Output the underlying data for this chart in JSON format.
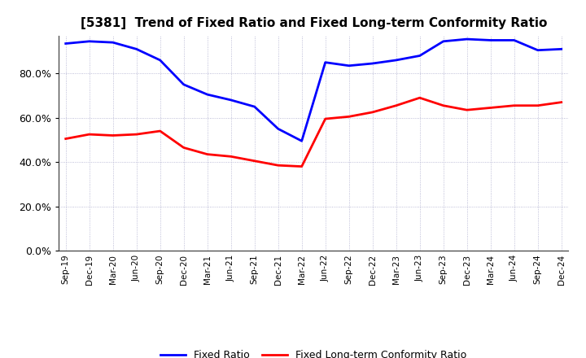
{
  "title": "[5381]  Trend of Fixed Ratio and Fixed Long-term Conformity Ratio",
  "x_labels": [
    "Sep-19",
    "Dec-19",
    "Mar-20",
    "Jun-20",
    "Sep-20",
    "Dec-20",
    "Mar-21",
    "Jun-21",
    "Sep-21",
    "Dec-21",
    "Mar-22",
    "Jun-22",
    "Sep-22",
    "Dec-22",
    "Mar-23",
    "Jun-23",
    "Sep-23",
    "Dec-23",
    "Mar-24",
    "Jun-24",
    "Sep-24",
    "Dec-24"
  ],
  "fixed_ratio": [
    93.5,
    94.5,
    94.0,
    91.0,
    86.0,
    75.0,
    70.5,
    68.0,
    65.0,
    55.0,
    49.5,
    85.0,
    83.5,
    84.5,
    86.0,
    88.0,
    94.5,
    95.5,
    95.0,
    95.0,
    90.5,
    91.0
  ],
  "fixed_lt_ratio": [
    50.5,
    52.5,
    52.0,
    52.5,
    54.0,
    46.5,
    43.5,
    42.5,
    40.5,
    38.5,
    38.0,
    59.5,
    60.5,
    62.5,
    65.5,
    69.0,
    65.5,
    63.5,
    64.5,
    65.5,
    65.5,
    67.0
  ],
  "fixed_ratio_color": "#0000FF",
  "fixed_lt_ratio_color": "#FF0000",
  "ylim": [
    0,
    97
  ],
  "yticks": [
    0,
    20,
    40,
    60,
    80
  ],
  "ytick_labels": [
    "0.0%",
    "20.0%",
    "40.0%",
    "60.0%",
    "80.0%"
  ],
  "background_color": "#FFFFFF",
  "plot_bg_color": "#FFFFFF",
  "grid_color": "#AAAACC",
  "legend_fixed_ratio": "Fixed Ratio",
  "legend_fixed_lt_ratio": "Fixed Long-term Conformity Ratio",
  "line_width": 2.0
}
